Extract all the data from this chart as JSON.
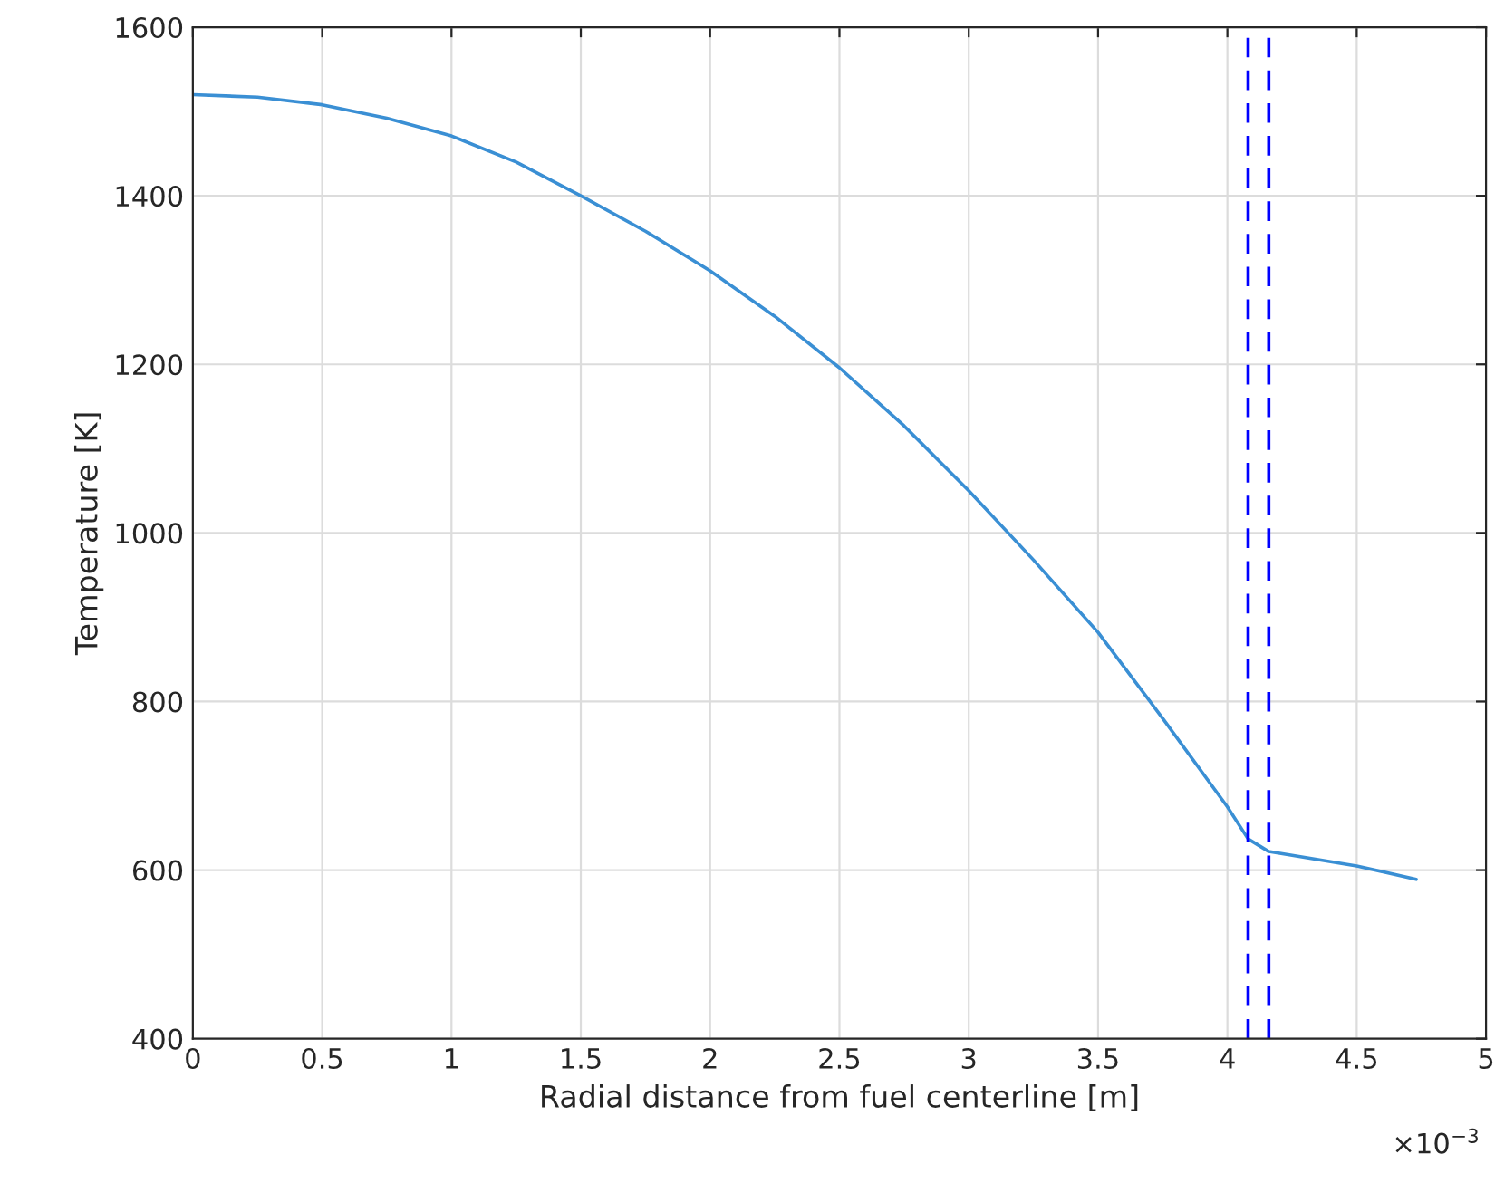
{
  "chart_data": {
    "type": "line",
    "xlabel": "Radial distance from fuel centerline [m]",
    "ylabel": "Temperature [K]",
    "x": [
      0,
      0.25,
      0.5,
      0.75,
      1,
      1.25,
      1.5,
      1.75,
      2,
      2.25,
      2.5,
      2.75,
      3,
      3.25,
      3.5,
      3.75,
      4,
      4.08,
      4.16,
      4.5,
      4.73
    ],
    "series": [
      {
        "color": "#3a8fd4",
        "values": [
          1520,
          1517,
          1508,
          1492,
          1471,
          1440,
          1400,
          1358,
          1311,
          1257,
          1196,
          1127,
          1050,
          968,
          882,
          780,
          675,
          637,
          622,
          605,
          589
        ]
      }
    ],
    "xlim": [
      0,
      5
    ],
    "xticks": [
      0,
      0.5,
      1,
      1.5,
      2,
      2.5,
      3,
      3.5,
      4,
      4.5,
      5
    ],
    "ylim": [
      400,
      1600
    ],
    "yticks": [
      400,
      600,
      800,
      1000,
      1200,
      1400,
      1600
    ],
    "ref_lines": [
      {
        "axis": "x",
        "value": 4.08,
        "color": "#0000ff",
        "line_style": "dashed"
      },
      {
        "axis": "x",
        "value": 4.16,
        "color": "#0000ff",
        "line_style": "dashed"
      }
    ],
    "annotations": [
      "×10$^{−3}$"
    ],
    "grid": true,
    "line_style": "solid",
    "marker": "none"
  }
}
